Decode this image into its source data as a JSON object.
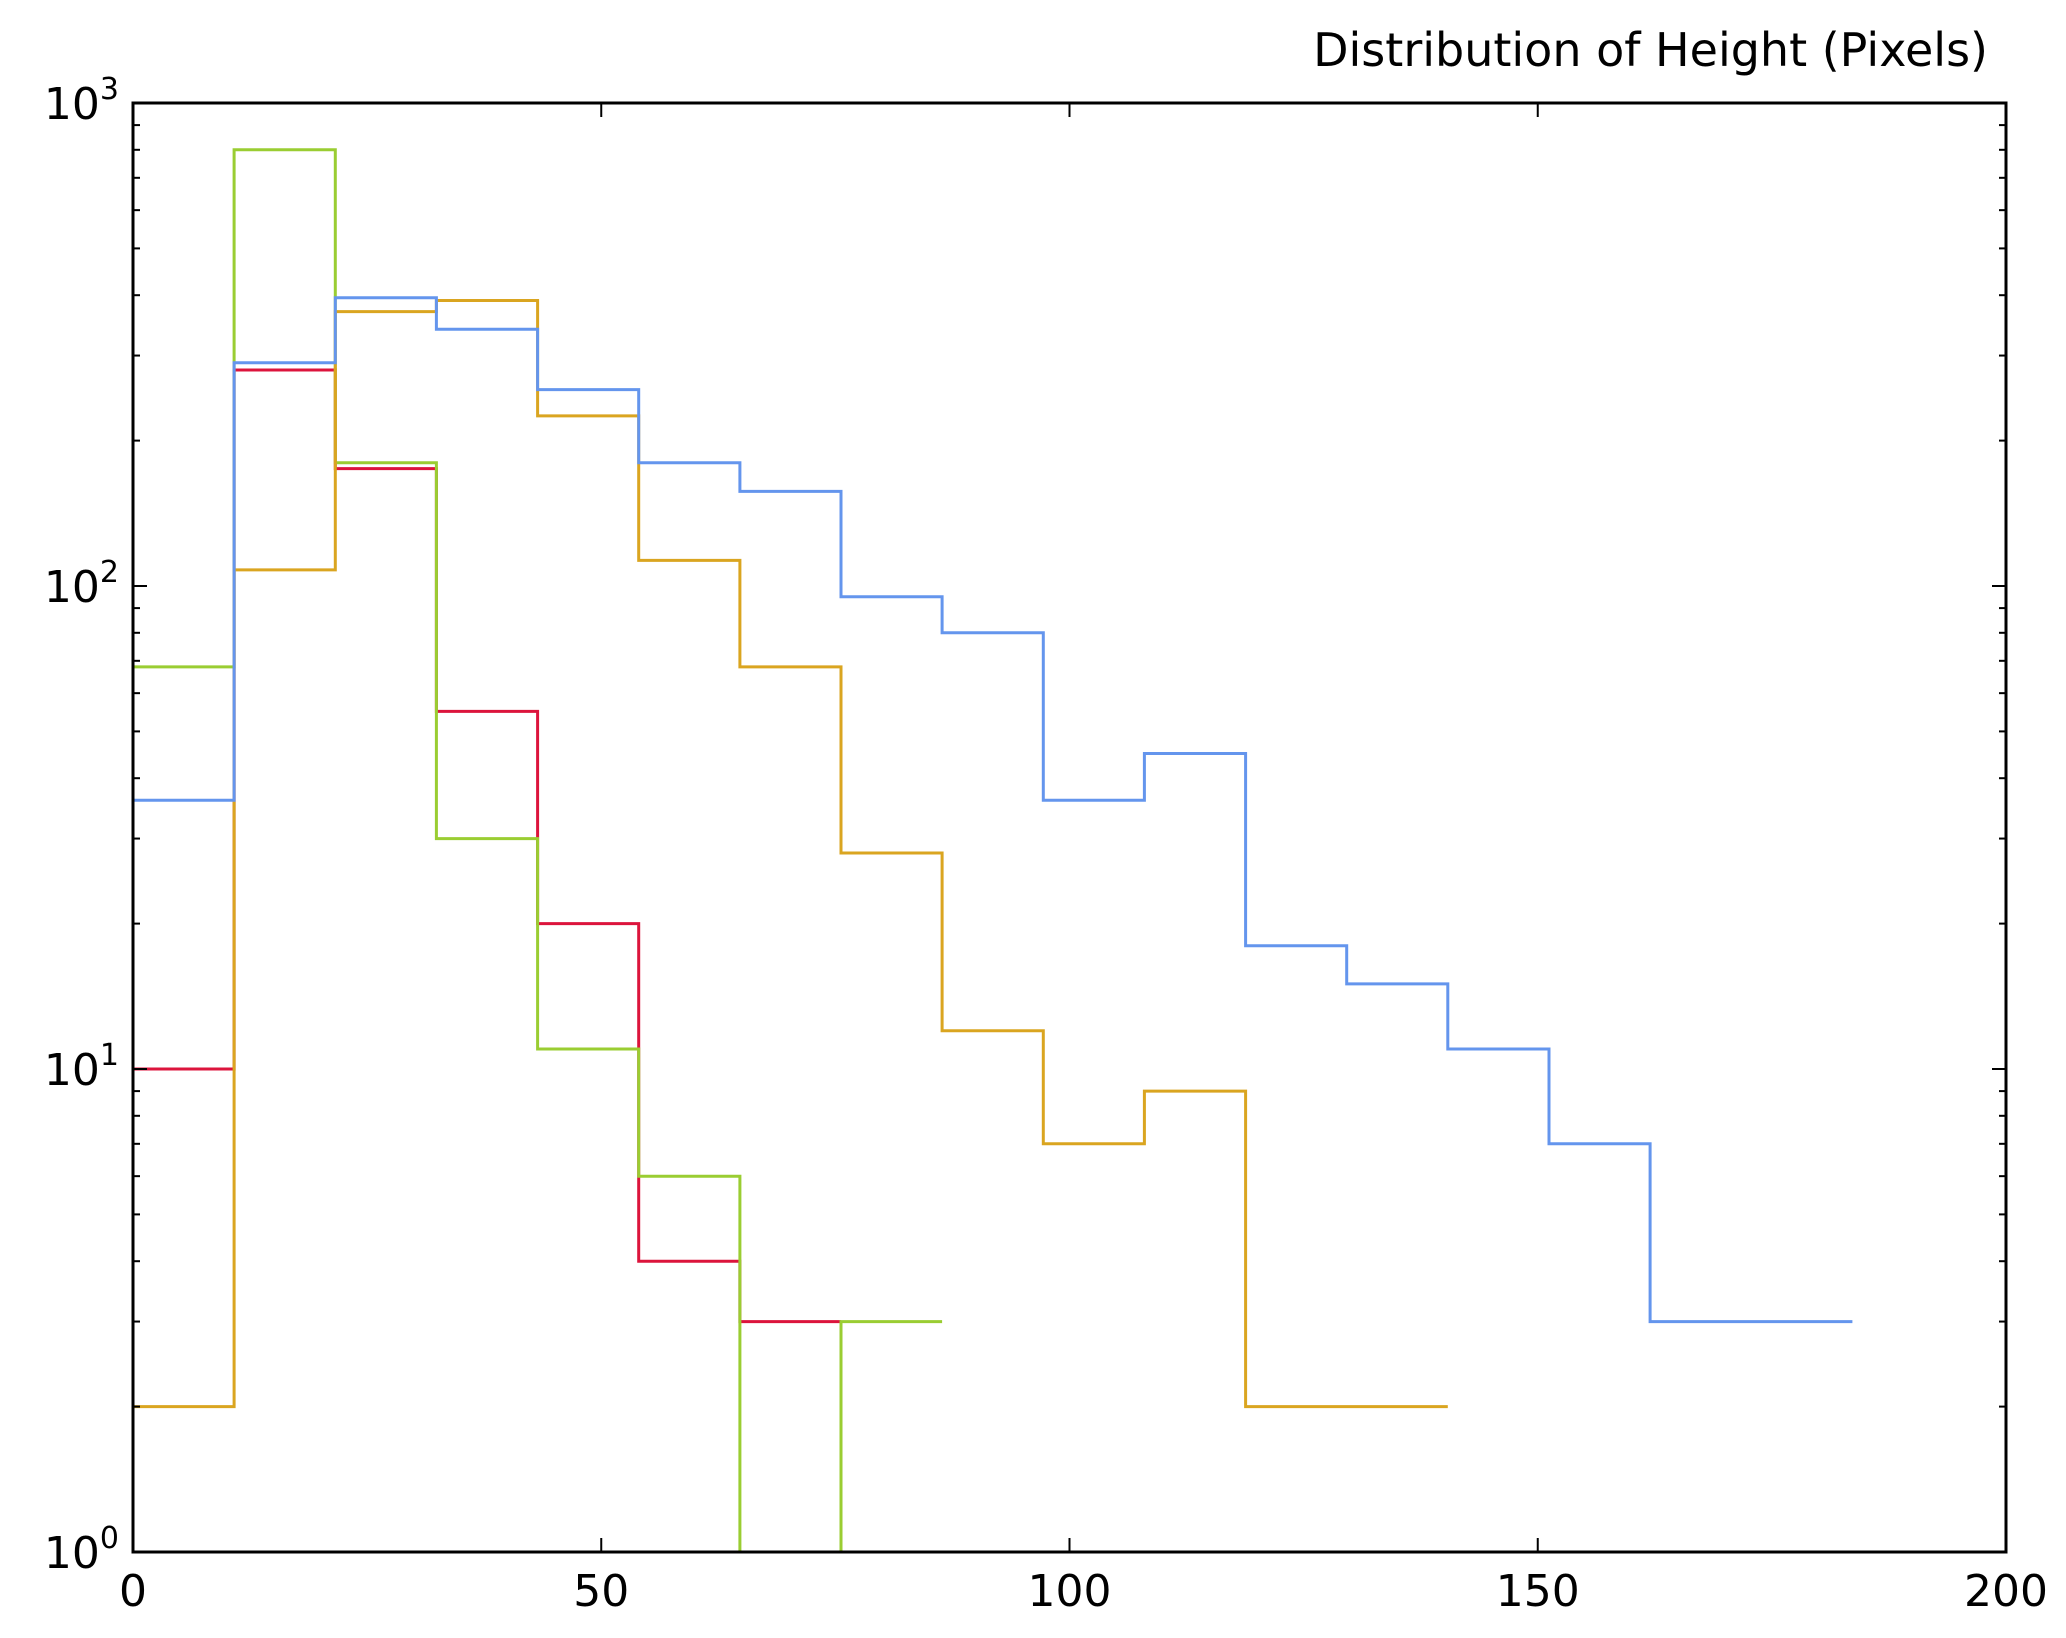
{
  "chart_data": {
    "type": "histogram-step",
    "title": "Distribution of Height (Pixels)",
    "xlabel": "",
    "ylabel": "",
    "xlim": [
      0,
      200
    ],
    "ylim": [
      1,
      1000
    ],
    "yscale": "log",
    "grid": false,
    "x_ticks": [
      0,
      50,
      100,
      150,
      200
    ],
    "x_tick_labels": [
      "0",
      "50",
      "100",
      "150",
      "200"
    ],
    "y_ticks": [
      {
        "value": 1,
        "base": "10",
        "exp": "0"
      },
      {
        "value": 10,
        "base": "10",
        "exp": "1"
      },
      {
        "value": 100,
        "base": "10",
        "exp": "2"
      },
      {
        "value": 1000,
        "base": "10",
        "exp": "3"
      }
    ],
    "series": [
      {
        "color": "#dc143c",
        "bin_edges": [
          0,
          10.8,
          21.6,
          32.4,
          43.2,
          54,
          64.8,
          75.6
        ],
        "counts": [
          10,
          280,
          175,
          55,
          20,
          4,
          3
        ]
      },
      {
        "color": "#9acd32",
        "bin_edges": [
          0,
          10.8,
          21.6,
          32.4,
          43.2,
          54,
          64.8,
          75.6,
          86.4
        ],
        "counts": [
          68,
          800,
          180,
          30,
          11,
          6,
          1,
          3
        ]
      },
      {
        "color": "#daa520",
        "bin_edges": [
          0,
          10.8,
          21.6,
          32.4,
          43.2,
          54,
          64.8,
          75.6,
          86.4,
          97.2,
          108,
          118.8,
          129.6,
          140.4
        ],
        "counts": [
          2,
          108,
          370,
          390,
          225,
          113,
          68,
          28,
          12,
          7,
          9,
          2,
          2
        ]
      },
      {
        "color": "#6495ed",
        "bin_edges": [
          0,
          10.8,
          21.6,
          32.4,
          43.2,
          54,
          64.8,
          75.6,
          86.4,
          97.2,
          108,
          118.8,
          129.6,
          140.4,
          151.2,
          162,
          172.8,
          183.6
        ],
        "counts": [
          36,
          290,
          395,
          340,
          255,
          180,
          157,
          95,
          80,
          36,
          45,
          18,
          15,
          11,
          7,
          3,
          3
        ]
      }
    ]
  }
}
